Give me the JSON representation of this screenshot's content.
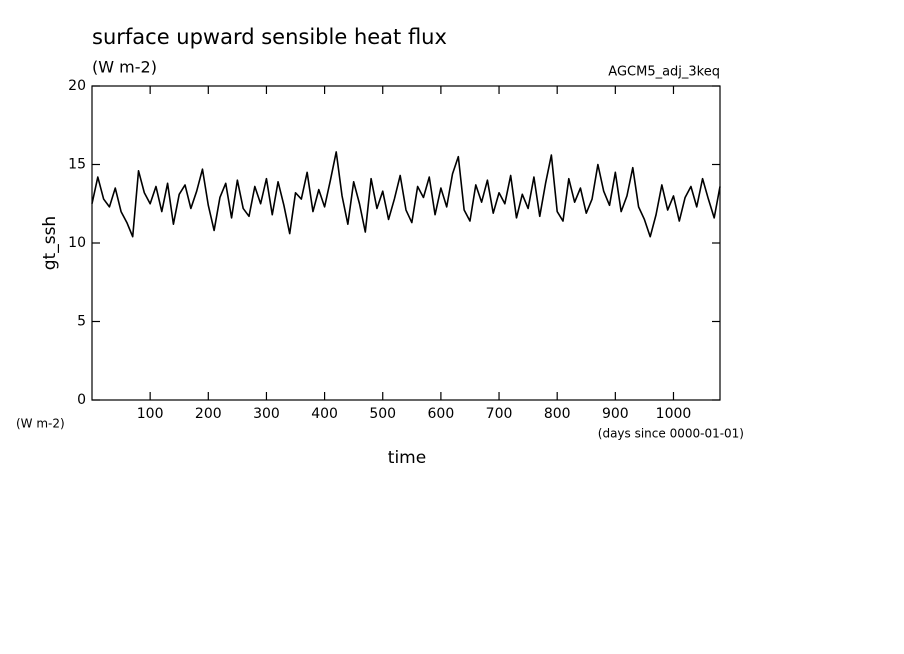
{
  "chart_data": {
    "type": "line",
    "title": "surface upward sensible heat flux",
    "subtitle": "(W m-2)",
    "annotation": "AGCM5_adj_3keq",
    "y_label": "gt_ssh",
    "y_unit": "(W m-2)",
    "x_label": "time",
    "x_unit": "(days since 0000-01-01)",
    "xlim": [
      0,
      1080
    ],
    "xticks": [
      100,
      200,
      300,
      400,
      500,
      600,
      700,
      800,
      900,
      1000
    ],
    "ylim": [
      0,
      20
    ],
    "yticks": [
      0,
      5,
      10,
      15,
      20
    ],
    "grid": false,
    "x": [
      0,
      10,
      20,
      30,
      40,
      50,
      60,
      70,
      80,
      90,
      100,
      110,
      120,
      130,
      140,
      150,
      160,
      170,
      180,
      190,
      200,
      210,
      220,
      230,
      240,
      250,
      260,
      270,
      280,
      290,
      300,
      310,
      320,
      330,
      340,
      350,
      360,
      370,
      380,
      390,
      400,
      410,
      420,
      430,
      440,
      450,
      460,
      470,
      480,
      490,
      500,
      510,
      520,
      530,
      540,
      550,
      560,
      570,
      580,
      590,
      600,
      610,
      620,
      630,
      640,
      650,
      660,
      670,
      680,
      690,
      700,
      710,
      720,
      730,
      740,
      750,
      760,
      770,
      780,
      790,
      800,
      810,
      820,
      830,
      840,
      850,
      860,
      870,
      880,
      890,
      900,
      910,
      920,
      930,
      940,
      950,
      960,
      970,
      980,
      990,
      1000,
      1010,
      1020,
      1030,
      1040,
      1050,
      1060,
      1070,
      1080
    ],
    "series": [
      {
        "color": "#000000",
        "values": [
          12.5,
          14.2,
          12.8,
          12.3,
          13.5,
          12.0,
          11.3,
          10.4,
          14.6,
          13.2,
          12.5,
          13.6,
          12.0,
          13.8,
          11.2,
          13.1,
          13.7,
          12.2,
          13.3,
          14.7,
          12.4,
          10.8,
          12.9,
          13.8,
          11.6,
          14.0,
          12.2,
          11.7,
          13.6,
          12.5,
          14.1,
          11.8,
          13.9,
          12.4,
          10.6,
          13.2,
          12.8,
          14.5,
          12.0,
          13.4,
          12.3,
          14.0,
          15.8,
          13.0,
          11.2,
          13.9,
          12.5,
          10.7,
          14.1,
          12.2,
          13.3,
          11.5,
          12.8,
          14.3,
          12.1,
          11.3,
          13.6,
          12.9,
          14.2,
          11.8,
          13.5,
          12.3,
          14.4,
          15.5,
          12.1,
          11.4,
          13.7,
          12.6,
          14.0,
          11.9,
          13.2,
          12.5,
          14.3,
          11.6,
          13.1,
          12.2,
          14.2,
          11.7,
          13.8,
          15.6,
          12.0,
          11.4,
          14.1,
          12.6,
          13.5,
          11.9,
          12.8,
          15.0,
          13.3,
          12.4,
          14.5,
          12.0,
          13.0,
          14.8,
          12.3,
          11.5,
          10.4,
          11.8,
          13.7,
          12.1,
          13.0,
          11.4,
          12.9,
          13.6,
          12.3,
          14.1,
          12.8,
          11.6,
          13.6
        ]
      }
    ]
  }
}
